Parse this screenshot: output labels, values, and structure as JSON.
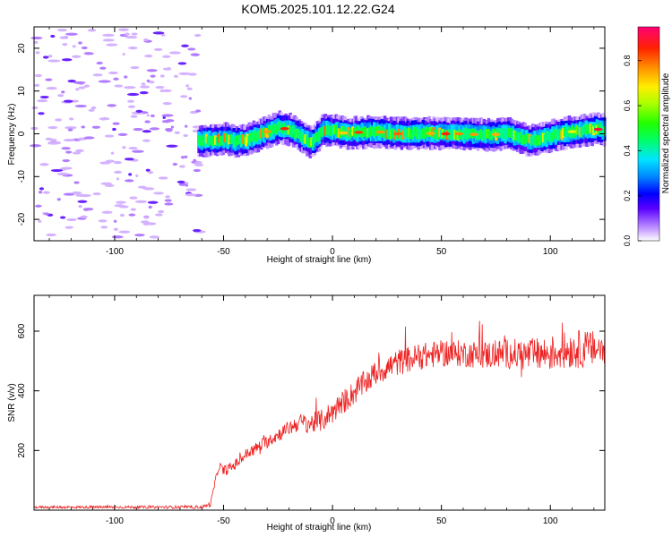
{
  "title": "KOM5.2025.101.12.22.G24",
  "chart_data": [
    {
      "type": "heatmap",
      "xlabel": "Height of straight line (km)",
      "ylabel": "Frequency (Hz)",
      "xlim": [
        -137,
        125
      ],
      "ylim": [
        -25,
        25
      ],
      "xticks": [
        -100,
        -50,
        0,
        50,
        100
      ],
      "yticks": [
        -20,
        -10,
        0,
        10,
        20
      ],
      "noise_region_x": [
        -137,
        -60
      ],
      "ridge": {
        "x": [
          -60,
          -55,
          -50,
          -45,
          -40,
          -35,
          -30,
          -25,
          -20,
          -15,
          -12,
          -10,
          -7,
          -5,
          0,
          5,
          10,
          20,
          30,
          40,
          50,
          60,
          70,
          80,
          85,
          90,
          95,
          100,
          105,
          110,
          115,
          120,
          125
        ],
        "y": [
          -1.5,
          -1.5,
          -1.2,
          -1.8,
          -1.5,
          -0.5,
          0.5,
          1.5,
          1.0,
          -0.5,
          -1.5,
          -2.0,
          -0.5,
          0.8,
          0.8,
          0.2,
          0.3,
          0.5,
          0.0,
          0.2,
          0.0,
          0.0,
          -0.3,
          0.0,
          -0.8,
          -1.5,
          -1.2,
          -0.5,
          0.0,
          0.5,
          0.8,
          1.2,
          0.8
        ]
      },
      "colorbar": {
        "label": "Normalized spectral amplitude",
        "range": [
          0.0,
          0.95
        ],
        "ticks": [
          0.0,
          0.2,
          0.4,
          0.6,
          0.8
        ]
      }
    },
    {
      "type": "line",
      "xlabel": "Height of straight line (km)",
      "ylabel": "SNR (v/v)",
      "xlim": [
        -137,
        125
      ],
      "ylim": [
        0,
        720
      ],
      "xticks": [
        -100,
        -50,
        0,
        50,
        100
      ],
      "yticks": [
        200,
        400,
        600
      ],
      "color": "#ee2222",
      "envelope": {
        "x": [
          -137,
          -60,
          -56,
          -54,
          -52,
          -50,
          -45,
          -40,
          -30,
          -20,
          -15,
          -10,
          -5,
          0,
          10,
          20,
          30,
          40,
          50,
          60,
          70,
          80,
          90,
          100,
          110,
          125
        ],
        "mean": [
          10,
          10,
          20,
          90,
          150,
          130,
          150,
          185,
          230,
          275,
          295,
          290,
          300,
          330,
          395,
          460,
          495,
          515,
          525,
          525,
          520,
          525,
          520,
          525,
          540,
          540
        ],
        "noise": [
          4,
          5,
          8,
          12,
          15,
          18,
          18,
          20,
          22,
          25,
          30,
          35,
          38,
          40,
          42,
          42,
          45,
          45,
          45,
          45,
          48,
          50,
          55,
          60,
          65,
          60
        ]
      }
    }
  ]
}
